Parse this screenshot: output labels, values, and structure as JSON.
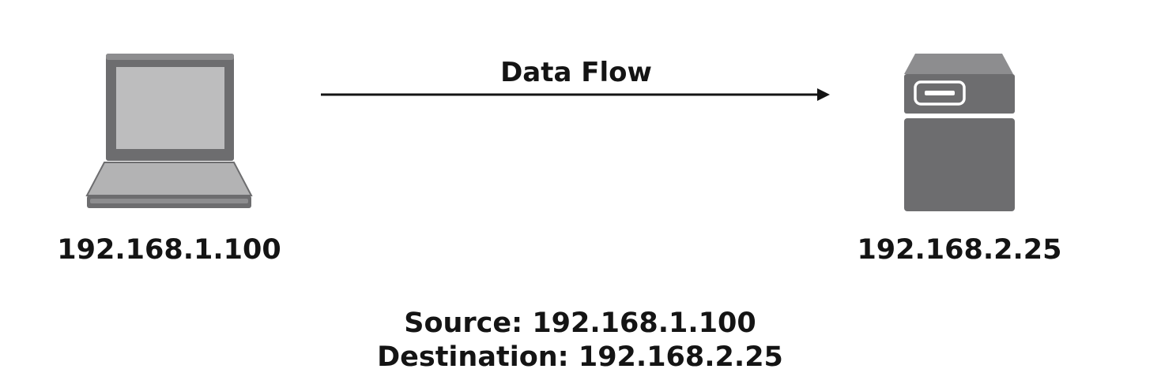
{
  "diagram": {
    "flow": {
      "label": "Data Flow"
    },
    "source_host": {
      "icon": "laptop-icon",
      "ip": "192.168.1.100"
    },
    "destination_host": {
      "icon": "server-icon",
      "ip": "192.168.2.25"
    },
    "packet": {
      "source_line": "Source: 192.168.1.100",
      "destination_line": "Destination: 192.168.2.25"
    }
  },
  "colors": {
    "device_dark": "#6d6d6f",
    "device_mid": "#8d8d8f",
    "device_light": "#bdbdbe",
    "text": "#141414",
    "arrow": "#141414"
  }
}
